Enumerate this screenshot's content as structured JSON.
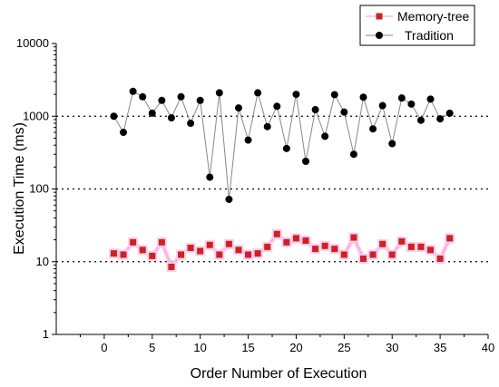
{
  "chart_data": {
    "type": "line",
    "title": "",
    "xlabel": "Order Number of Execution",
    "ylabel": "Execution Time (ms)",
    "xlim": [
      -5,
      40
    ],
    "ylim": [
      1,
      10000
    ],
    "yscale": "log",
    "x_ticks": [
      0,
      5,
      10,
      15,
      20,
      25,
      30,
      35,
      40
    ],
    "y_ticks": [
      1,
      10,
      100,
      1000,
      10000
    ],
    "y_tick_labels": [
      "1",
      "10",
      "100",
      "1000",
      "10000"
    ],
    "grid": "horizontal dotted at 10, 100, 1000",
    "legend_position": "top-right",
    "x": [
      1,
      2,
      3,
      4,
      5,
      6,
      7,
      8,
      9,
      10,
      11,
      12,
      13,
      14,
      15,
      16,
      17,
      18,
      19,
      20,
      21,
      22,
      23,
      24,
      25,
      26,
      27,
      28,
      29,
      30,
      31,
      32,
      33,
      34,
      35,
      36
    ],
    "series": [
      {
        "name": "Memory-tree",
        "marker": "square",
        "color": "#cc2222",
        "line_color": "#ff99cc",
        "values": [
          13,
          12.5,
          18.5,
          14.5,
          12,
          18.5,
          8.5,
          12.5,
          15.5,
          14,
          17,
          12.5,
          17.5,
          14.5,
          12.5,
          13,
          16,
          24,
          18.5,
          21,
          19.5,
          15,
          16.5,
          15,
          12.5,
          21.5,
          11,
          12.5,
          17.5,
          12.5,
          19,
          16,
          16,
          14.5,
          11,
          21
        ]
      },
      {
        "name": "Tradition",
        "marker": "circle",
        "color": "#000000",
        "line_color": "#888888",
        "values": [
          1000,
          600,
          2200,
          1850,
          1100,
          1650,
          950,
          1850,
          800,
          1650,
          145,
          2100,
          72,
          1300,
          470,
          2100,
          720,
          1370,
          360,
          2000,
          240,
          1230,
          530,
          1980,
          1140,
          300,
          1830,
          670,
          1400,
          420,
          1780,
          1470,
          880,
          1720,
          920,
          1100
        ]
      }
    ]
  }
}
